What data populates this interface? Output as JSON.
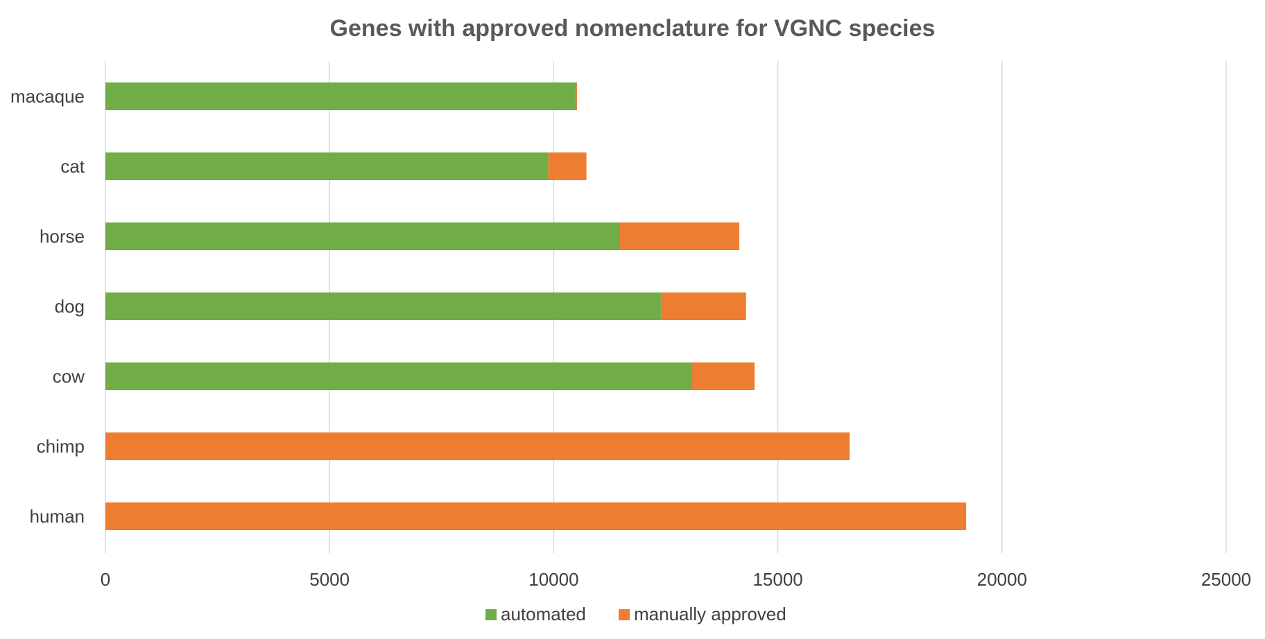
{
  "chart_data": {
    "type": "bar",
    "orientation": "horizontal",
    "stacked": true,
    "title": "Genes with approved nomenclature for VGNC species",
    "xlabel": "",
    "ylabel": "",
    "categories": [
      "macaque",
      "cat",
      "horse",
      "dog",
      "cow",
      "chimp",
      "human"
    ],
    "series": [
      {
        "name": "automated",
        "color": "#70AD47",
        "values": [
          10500,
          9880,
          11480,
          12390,
          13080,
          0,
          0
        ]
      },
      {
        "name": "manually approved",
        "color": "#ED7D31",
        "values": [
          20,
          850,
          2660,
          1900,
          1400,
          16600,
          19200
        ]
      }
    ],
    "xlim": [
      0,
      25000
    ],
    "ticks": [
      "0",
      "5000",
      "10000",
      "15000",
      "20000",
      "25000"
    ],
    "grid": true,
    "legend_position": "bottom"
  }
}
